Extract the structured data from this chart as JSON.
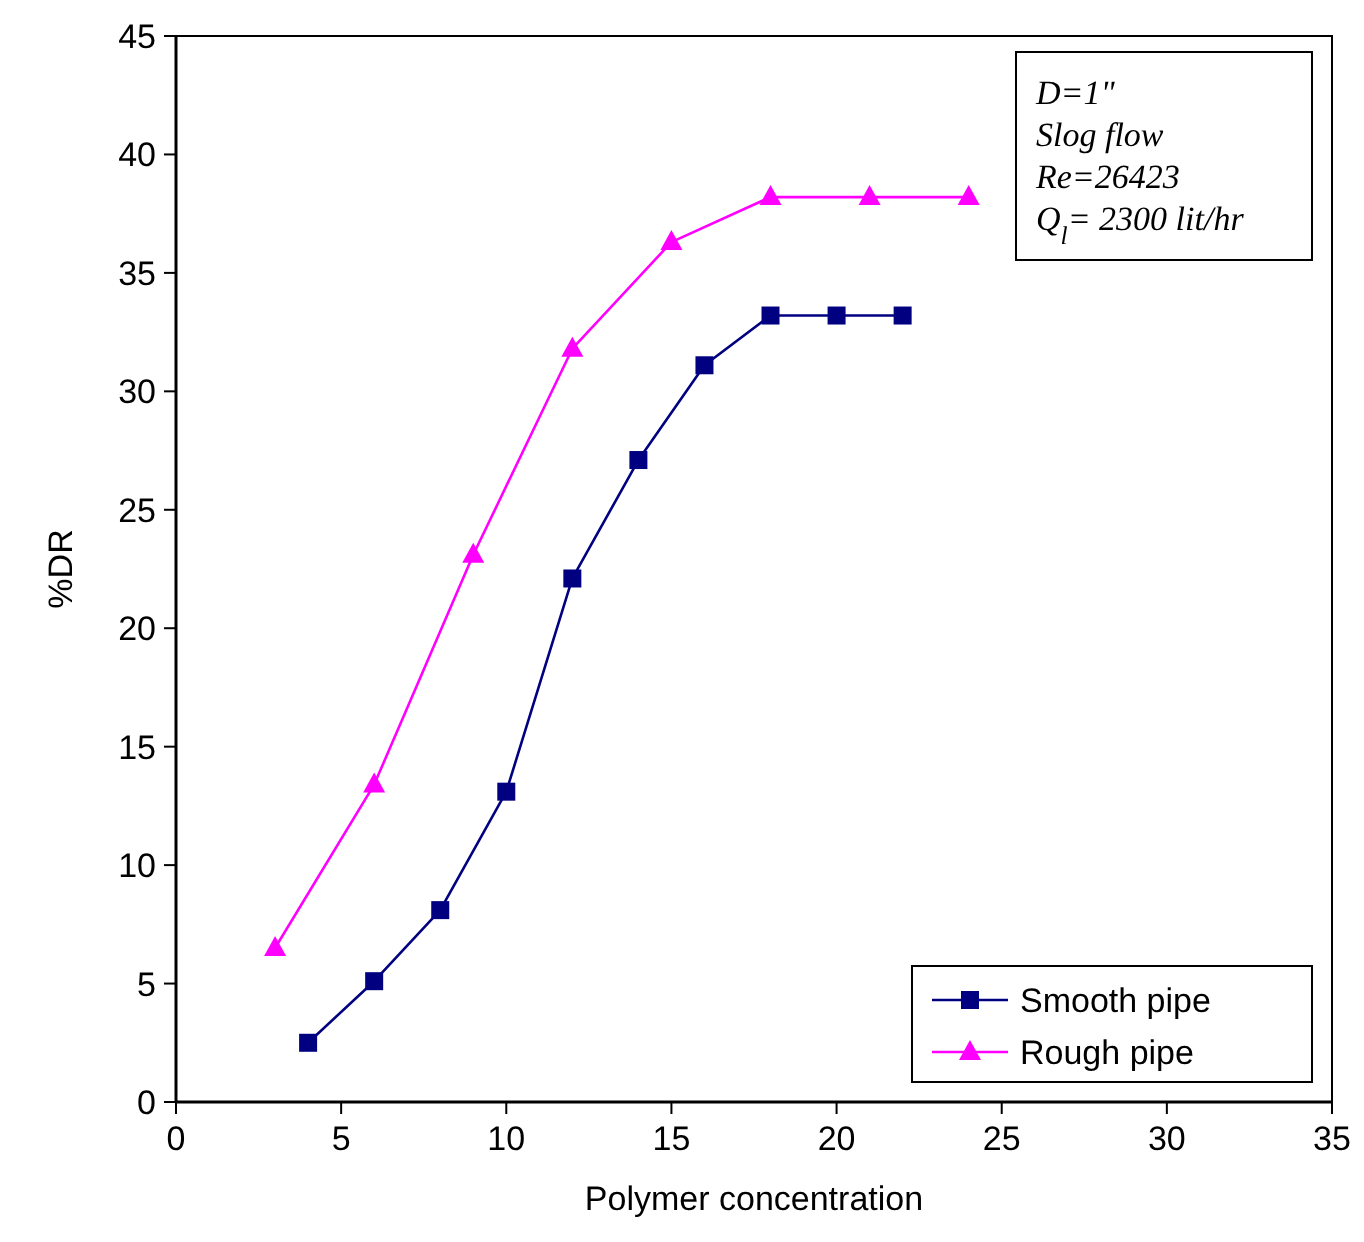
{
  "chart_data": {
    "type": "line",
    "xlabel": "Polymer concentration",
    "ylabel": "%DR",
    "xlim": [
      0,
      35
    ],
    "xticks": [
      0,
      5,
      10,
      15,
      20,
      25,
      30,
      35
    ],
    "ylim": [
      0,
      45
    ],
    "yticks": [
      0,
      5,
      10,
      15,
      20,
      25,
      30,
      35,
      40,
      45
    ],
    "grid": false,
    "legend": "bottom right",
    "annotations": [
      "D=1\"",
      "Slog flow",
      "Re=26423",
      "Q$_{l}$= 2300 lit/hr"
    ],
    "series": [
      {
        "name": "Smooth pipe",
        "color": "#000080",
        "marker": "square",
        "x": [
          4,
          6,
          8,
          10,
          12,
          14,
          16,
          18,
          20,
          22
        ],
        "values": [
          2.5,
          5.1,
          8.1,
          13.1,
          22.1,
          27.1,
          31.1,
          33.2,
          33.2,
          33.2
        ]
      },
      {
        "name": "Rough pipe",
        "color": "#ff00ff",
        "marker": "triangle",
        "x": [
          3,
          6,
          9,
          12,
          15,
          18,
          21,
          24
        ],
        "values": [
          6.5,
          13.4,
          23.1,
          31.8,
          36.3,
          38.2,
          38.2,
          38.2
        ]
      }
    ]
  }
}
